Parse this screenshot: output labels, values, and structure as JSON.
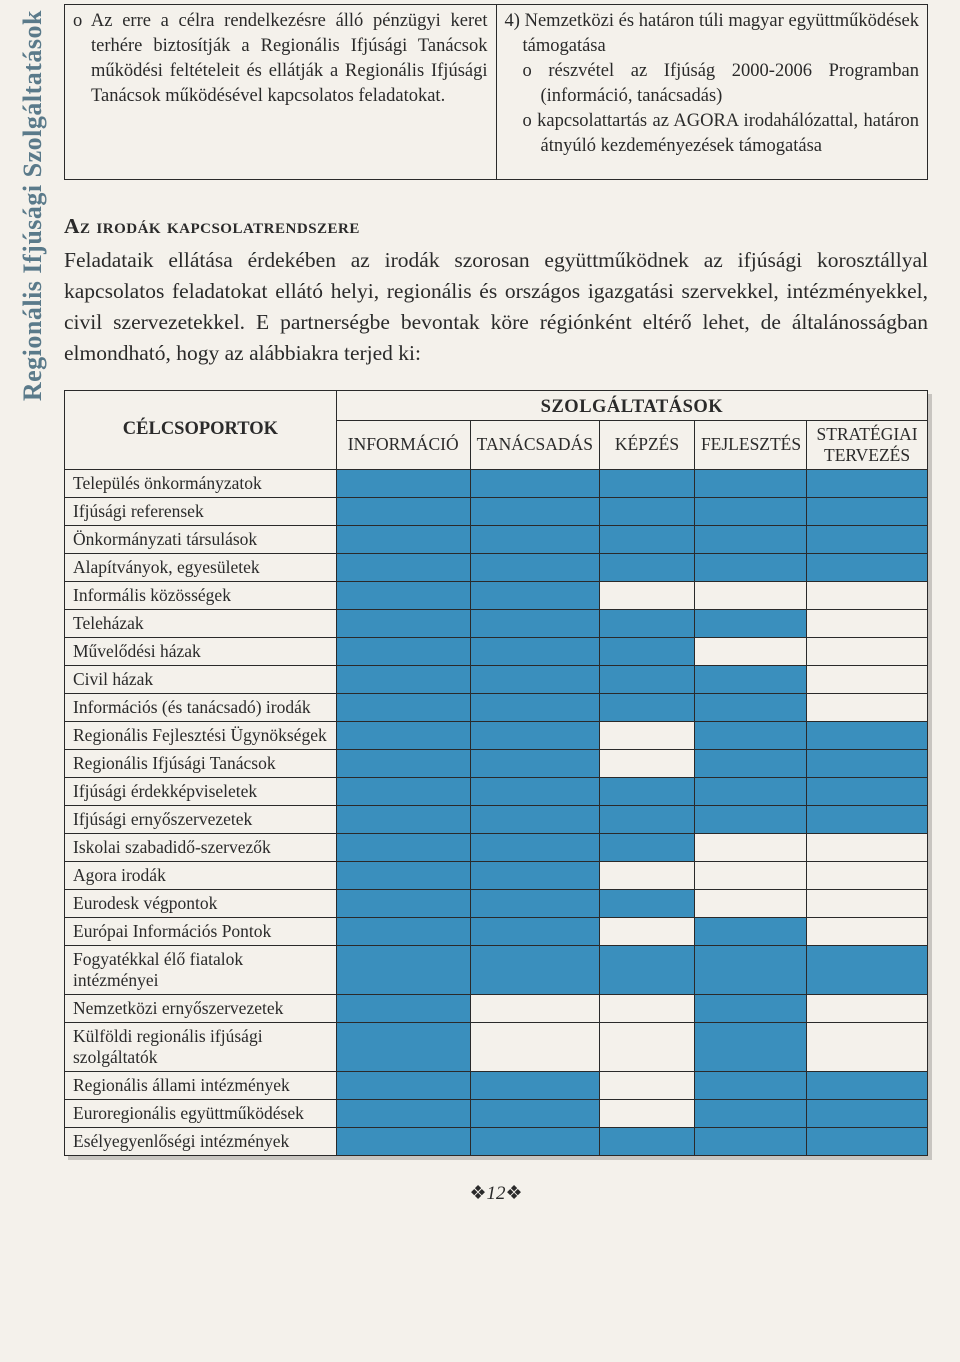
{
  "colors": {
    "background": "#f4f1eb",
    "text": "#2a2a2a",
    "sidebar_text": "#5a7a8a",
    "cell_fill": "#3a8fbd",
    "table_border": "#2a2a2a",
    "shadow": "rgba(0,0,0,0.18)"
  },
  "typography": {
    "body_font": "Georgia / Times New Roman serif",
    "body_size_pt": 16,
    "heading_smallcaps": true,
    "matrix_cell_size_pt": 13
  },
  "sidebar_label": "Regionális Ifjúsági Szolgáltatások",
  "top_cells": {
    "left": "o  Az erre a célra rendelkezésre álló pénzügyi keret terhére biztosítják a Regionális Ifjúsági Tanácsok működési feltételeit és ellátják a Regionális Ifjúsági Tanácsok működésével kapcsolatos feladatokat.",
    "right_lead": "4)  Nemzetközi és határon túli magyar együttműködések támogatása",
    "right_sub1": "o részvétel az Ifjúság 2000-2006 Programban (információ, tanácsadás)",
    "right_sub2": "o kapcsolattartás az AGORA irodahálózattal, határon átnyúló kezdeményezések támogatása"
  },
  "section_heading": "Az irodák kapcsolatrendszere",
  "body_paragraph": "Feladataik ellátása érdekében az irodák szorosan együttműködnek az ifjúsági korosztállyal kapcsolatos feladatokat ellátó helyi, regionális és országos igazgatási szervekkel, intézményekkel, civil szervezetekkel. E partnerségbe bevontak köre régiónként eltérő lehet, de általánosságban elmondható, hogy az alábbiakra terjed ki:",
  "matrix": {
    "type": "table",
    "group_label": "CÉLCSOPORTOK",
    "super_header": "SZOLGÁLTATÁSOK",
    "columns": [
      "INFORMÁCIÓ",
      "TANÁCSADÁS",
      "KÉPZÉS",
      "FEJLESZTÉS",
      "STRATÉGIAI TERVEZÉS"
    ],
    "col_widths_pct": [
      31.5,
      15.5,
      15,
      11,
      13,
      14
    ],
    "rows": [
      {
        "label": "Település önkormányzatok",
        "cells": [
          1,
          1,
          1,
          1,
          1
        ]
      },
      {
        "label": "Ifjúsági referensek",
        "cells": [
          1,
          1,
          1,
          1,
          1
        ]
      },
      {
        "label": "Önkormányzati társulások",
        "cells": [
          1,
          1,
          1,
          1,
          1
        ]
      },
      {
        "label": "Alapítványok, egyesületek",
        "cells": [
          1,
          1,
          1,
          1,
          1
        ]
      },
      {
        "label": "Informális közösségek",
        "cells": [
          1,
          1,
          0,
          0,
          0
        ]
      },
      {
        "label": "Teleházak",
        "cells": [
          1,
          1,
          1,
          1,
          0
        ]
      },
      {
        "label": "Művelődési házak",
        "cells": [
          1,
          1,
          1,
          0,
          0
        ]
      },
      {
        "label": "Civil házak",
        "cells": [
          1,
          1,
          1,
          1,
          0
        ]
      },
      {
        "label": "Információs (és tanácsadó) irodák",
        "cells": [
          1,
          1,
          1,
          1,
          0
        ]
      },
      {
        "label": "Regionális Fejlesztési Ügynökségek",
        "cells": [
          1,
          1,
          0,
          1,
          1
        ]
      },
      {
        "label": "Regionális Ifjúsági Tanácsok",
        "cells": [
          1,
          1,
          0,
          1,
          1
        ]
      },
      {
        "label": "Ifjúsági érdekképviseletek",
        "cells": [
          1,
          1,
          1,
          1,
          1
        ]
      },
      {
        "label": "Ifjúsági ernyőszervezetek",
        "cells": [
          1,
          1,
          1,
          1,
          1
        ]
      },
      {
        "label": "Iskolai szabadidő-szervezők",
        "cells": [
          1,
          1,
          1,
          0,
          0
        ]
      },
      {
        "label": "Agora irodák",
        "cells": [
          1,
          1,
          0,
          0,
          0
        ]
      },
      {
        "label": "Eurodesk végpontok",
        "cells": [
          1,
          1,
          1,
          0,
          0
        ]
      },
      {
        "label": "Európai Információs Pontok",
        "cells": [
          1,
          1,
          0,
          1,
          0
        ]
      },
      {
        "label": "Fogyatékkal élő fiatalok intézményei",
        "cells": [
          1,
          1,
          1,
          1,
          1
        ]
      },
      {
        "label": "Nemzetközi ernyőszervezetek",
        "cells": [
          1,
          0,
          0,
          1,
          0
        ]
      },
      {
        "label": "Külföldi regionális ifjúsági szolgáltatók",
        "cells": [
          1,
          0,
          0,
          1,
          0
        ]
      },
      {
        "label": "Regionális állami intézmények",
        "cells": [
          1,
          1,
          0,
          1,
          1
        ]
      },
      {
        "label": "Euroregionális együttműködések",
        "cells": [
          1,
          1,
          0,
          1,
          1
        ]
      },
      {
        "label": "Esélyegyenlőségi intézmények",
        "cells": [
          1,
          1,
          1,
          1,
          1
        ]
      }
    ]
  },
  "page_number": "12"
}
